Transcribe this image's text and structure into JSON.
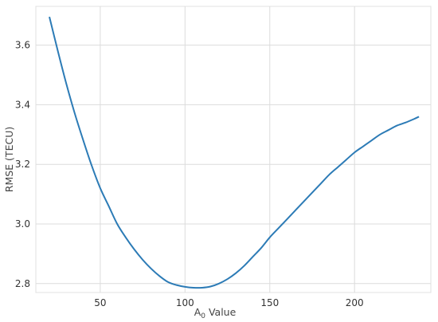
{
  "chart_data": {
    "type": "line",
    "title": "",
    "xlabel_main": "A",
    "xlabel_sub": "0",
    "xlabel_rest": " Value",
    "ylabel": "RMSE (TECU)",
    "xlim": [
      12,
      245
    ],
    "ylim": [
      2.77,
      3.73
    ],
    "xticks": [
      50,
      100,
      150,
      200
    ],
    "yticks": [
      2.8,
      3.0,
      3.2,
      3.4,
      3.6
    ],
    "ytick_labels": [
      "2.8",
      "3.0",
      "3.2",
      "3.4",
      "3.6"
    ],
    "grid": true,
    "series": [
      {
        "color": "#2c7bb6",
        "x": [
          20,
          25,
          30,
          35,
          40,
          45,
          50,
          55,
          60,
          65,
          70,
          75,
          80,
          85,
          90,
          95,
          100,
          105,
          110,
          115,
          120,
          125,
          130,
          135,
          140,
          145,
          150,
          155,
          160,
          165,
          170,
          175,
          180,
          185,
          190,
          195,
          200,
          205,
          210,
          215,
          220,
          225,
          230,
          235,
          238
        ],
        "y": [
          3.695,
          3.58,
          3.47,
          3.37,
          3.28,
          3.195,
          3.12,
          3.06,
          3.0,
          2.955,
          2.915,
          2.88,
          2.85,
          2.825,
          2.805,
          2.795,
          2.789,
          2.786,
          2.786,
          2.79,
          2.8,
          2.815,
          2.835,
          2.86,
          2.89,
          2.92,
          2.955,
          2.985,
          3.015,
          3.045,
          3.075,
          3.105,
          3.135,
          3.165,
          3.19,
          3.215,
          3.24,
          3.26,
          3.28,
          3.3,
          3.315,
          3.33,
          3.34,
          3.352,
          3.36
        ]
      }
    ]
  }
}
